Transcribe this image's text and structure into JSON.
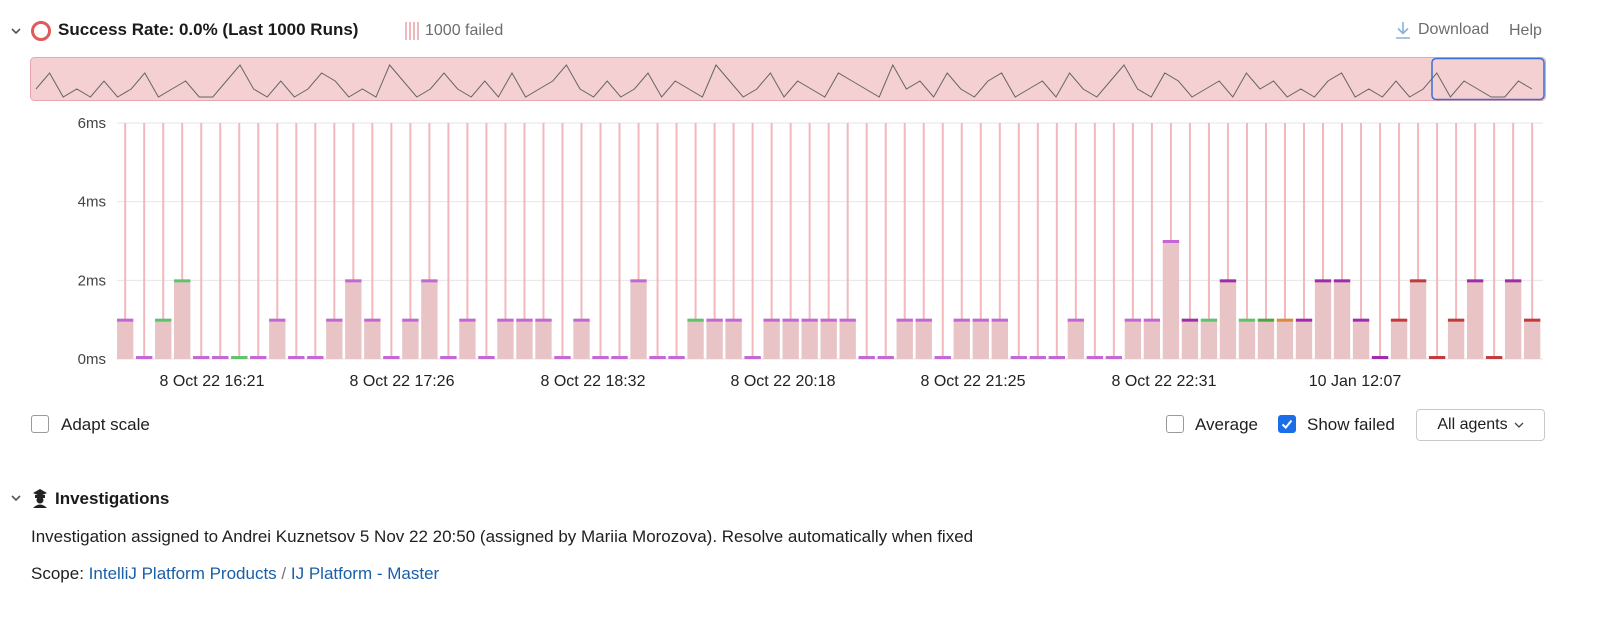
{
  "header": {
    "title": "Success Rate: 0.0% (Last 1000 Runs)",
    "failed_count": "1000 failed",
    "download_label": "Download",
    "help_label": "Help"
  },
  "chart_data": {
    "type": "bar",
    "ylabel": "",
    "y_ticks": [
      "6ms",
      "4ms",
      "2ms",
      "0ms"
    ],
    "ylim": [
      0,
      6
    ],
    "x_tick_labels": [
      "8 Oct 22 16:21",
      "8 Oct 22 17:26",
      "8 Oct 22 18:32",
      "8 Oct 22 20:18",
      "8 Oct 22 21:25",
      "8 Oct 22 22:31",
      "10 Jan 12:07"
    ],
    "grid": true,
    "values": [
      1,
      0,
      1,
      2,
      0,
      0,
      0,
      0,
      1,
      0,
      0,
      1,
      2,
      1,
      0,
      1,
      2,
      0,
      1,
      0,
      1,
      1,
      1,
      0,
      1,
      0,
      0,
      2,
      0,
      0,
      1,
      1,
      1,
      0,
      1,
      1,
      1,
      1,
      1,
      0,
      0,
      1,
      1,
      0,
      1,
      1,
      1,
      0,
      0,
      0,
      1,
      0,
      0,
      1,
      1,
      3,
      1,
      1,
      2,
      1,
      1,
      1,
      1,
      2,
      2,
      1,
      0,
      1,
      2,
      0,
      1,
      2,
      0,
      2,
      1
    ],
    "cap_colors": [
      "#c466d6",
      "#c466d6",
      "#5ec46a",
      "#5ec46a",
      "#c466d6",
      "#c466d6",
      "#5ec46a",
      "#c466d6",
      "#c466d6",
      "#c466d6",
      "#c466d6",
      "#c466d6",
      "#c466d6",
      "#c466d6",
      "#c466d6",
      "#c466d6",
      "#c466d6",
      "#c466d6",
      "#c466d6",
      "#c466d6",
      "#c466d6",
      "#c466d6",
      "#c466d6",
      "#c466d6",
      "#c466d6",
      "#c466d6",
      "#c466d6",
      "#c466d6",
      "#c466d6",
      "#c466d6",
      "#5ec46a",
      "#c466d6",
      "#c466d6",
      "#c466d6",
      "#c466d6",
      "#c466d6",
      "#c466d6",
      "#c466d6",
      "#c466d6",
      "#c466d6",
      "#c466d6",
      "#c466d6",
      "#c466d6",
      "#c466d6",
      "#c466d6",
      "#c466d6",
      "#c466d6",
      "#c466d6",
      "#c466d6",
      "#c466d6",
      "#c466d6",
      "#c466d6",
      "#c466d6",
      "#c466d6",
      "#c466d6",
      "#c466d6",
      "#a02ab0",
      "#5ec46a",
      "#a02ab0",
      "#5ec46a",
      "#4aa83c",
      "#d98a3a",
      "#a02ab0",
      "#a02ab0",
      "#a02ab0",
      "#a02ab0",
      "#a02ab0",
      "#c23a3a",
      "#c23a3a",
      "#c23a3a",
      "#c23a3a",
      "#a02ab0",
      "#c23a3a",
      "#a02ab0",
      "#c23a3a"
    ],
    "bar_color": "#e8c4c6",
    "failed_line_color": "#f2b8bc"
  },
  "overview": {
    "fill_color": "#f4d0d3",
    "values": [
      1,
      3,
      0,
      1,
      0,
      2,
      0,
      1,
      3,
      0,
      1,
      2,
      0,
      0,
      2,
      4,
      1,
      0,
      2,
      0,
      1,
      3,
      2,
      0,
      1,
      0,
      4,
      2,
      0,
      1,
      3,
      1,
      0,
      2,
      0,
      3,
      0,
      1,
      2,
      4,
      1,
      0,
      2,
      0,
      1,
      3,
      0,
      2,
      1,
      0,
      4,
      2,
      0,
      1,
      3,
      0,
      2,
      1,
      0,
      3,
      2,
      1,
      0,
      4,
      1,
      2,
      0,
      3,
      1,
      0,
      2,
      3,
      0,
      1,
      2,
      0,
      3,
      1,
      0,
      2,
      4,
      1,
      0,
      3,
      2,
      0,
      1,
      2,
      0,
      3,
      1,
      2,
      0,
      1,
      0,
      2,
      3,
      0,
      1,
      0,
      2,
      0,
      1,
      3,
      0,
      2,
      1,
      0,
      0,
      2,
      1
    ]
  },
  "controls": {
    "adapt_scale_label": "Adapt scale",
    "average_label": "Average",
    "show_failed_label": "Show failed",
    "agents_label": "All agents"
  },
  "investigations": {
    "title": "Investigations",
    "text": "Investigation assigned to Andrei Kuznetsov 5 Nov 22 20:50 (assigned by Mariia Morozova). Resolve automatically when fixed",
    "scope_label": "Scope:",
    "scope_link1": "IntelliJ Platform Products",
    "scope_sep": "/",
    "scope_link2": "IJ Platform - Master"
  }
}
